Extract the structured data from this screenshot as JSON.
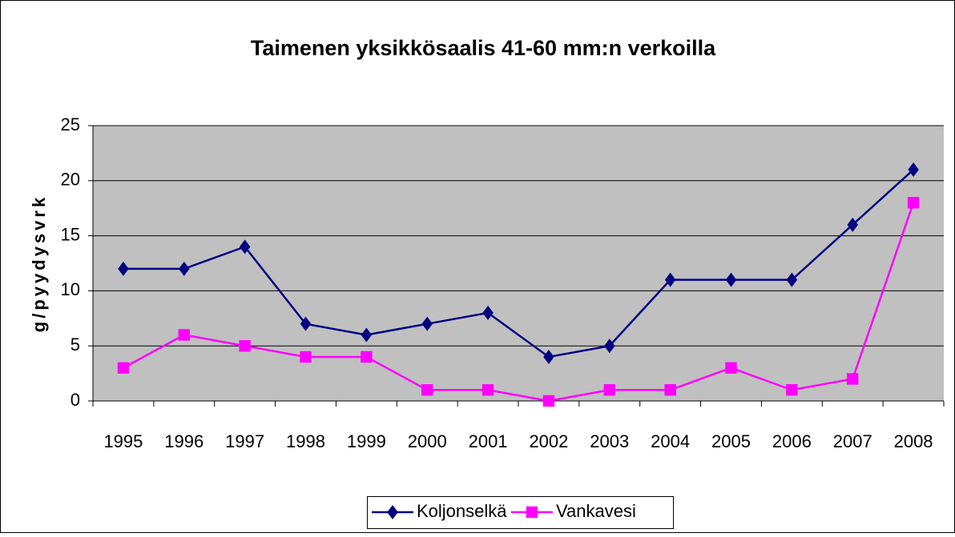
{
  "chart_data": {
    "type": "line",
    "title": "Taimenen yksikkösaalis 41-60 mm:n verkoilla",
    "y_label": "g/pyydysvrk",
    "categories": [
      "1995",
      "1996",
      "1997",
      "1998",
      "1999",
      "2000",
      "2001",
      "2002",
      "2003",
      "2004",
      "2005",
      "2006",
      "2007",
      "2008"
    ],
    "series": [
      {
        "name": "Koljonselkä",
        "color": "#000080",
        "marker": "diamond",
        "values": [
          12,
          12,
          14,
          7,
          6,
          7,
          8,
          4,
          5,
          11,
          11,
          11,
          16,
          21
        ]
      },
      {
        "name": "Vankavesi",
        "color": "#ff00ff",
        "marker": "square",
        "values": [
          3,
          6,
          5,
          4,
          4,
          1,
          1,
          0,
          1,
          1,
          3,
          1,
          2,
          18
        ]
      }
    ],
    "ylim": [
      0,
      25
    ],
    "yticks": [
      0,
      5,
      10,
      15,
      20,
      25
    ],
    "grid": true,
    "legend": "bottom"
  }
}
